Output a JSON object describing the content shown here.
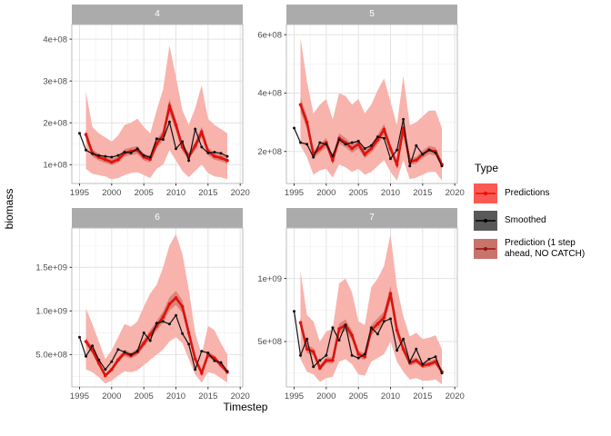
{
  "axes": {
    "x_label": "Timestep",
    "y_label": "biomass"
  },
  "legend": {
    "title": "Type",
    "items": [
      {
        "label": "Predictions",
        "swatch_bg": "#FB5A52",
        "line": "#F00C06"
      },
      {
        "label": "Smoothed",
        "swatch_bg": "#595959",
        "line": "#000000"
      },
      {
        "label": "Prediction (1 step ahead, NO CATCH)",
        "swatch_bg": "#C8736C",
        "line": "#99150D"
      }
    ]
  },
  "colors": {
    "pred_line": "#F00C06",
    "pred_ahead_line": "#A8241B",
    "smoothed_line": "#101010",
    "ribbon_outer": "#F8B3AD",
    "ribbon_inner": "#DD837B",
    "strip_fill": "#ABABAB",
    "strip_text": "#FFFFFF",
    "panel_border": "#BDBDBD",
    "grid_major": "#E3E3E3",
    "grid_minor": "#F1F1F1",
    "tick_label": "#4D4D4D"
  },
  "chart_data": {
    "type": "line",
    "title": "",
    "xlabel": "Timestep",
    "ylabel": "biomass",
    "value_scale": 100000000,
    "x_range": [
      1993.8,
      2020.4
    ],
    "x_ticks": [
      1995,
      2000,
      2005,
      2010,
      2015,
      2020
    ],
    "x_tick_labels": [
      "1995",
      "2000",
      "2005",
      "2010",
      "2015",
      "2020"
    ],
    "years": [
      1995,
      1996,
      1997,
      1998,
      1999,
      2000,
      2001,
      2002,
      2003,
      2004,
      2005,
      2006,
      2007,
      2008,
      2009,
      2010,
      2011,
      2012,
      2013,
      2014,
      2015,
      2016,
      2017,
      2018
    ],
    "pred_years_start": 1996,
    "facets": [
      {
        "label": "4",
        "ylim": [
          0.55,
          4.35
        ],
        "yticks": [
          1,
          2,
          3,
          4
        ],
        "ytick_labels": [
          "1e+08",
          "2e+08",
          "3e+08",
          "4e+08"
        ],
        "smoothed": [
          1.75,
          1.35,
          1.26,
          1.22,
          1.2,
          1.18,
          1.22,
          1.3,
          1.28,
          1.38,
          1.22,
          1.18,
          1.62,
          1.6,
          2.02,
          1.38,
          1.55,
          1.1,
          1.85,
          1.42,
          1.28,
          1.3,
          1.27,
          1.2
        ],
        "predictions": [
          1.72,
          1.28,
          1.18,
          1.12,
          1.06,
          1.12,
          1.28,
          1.32,
          1.35,
          1.18,
          1.13,
          1.5,
          1.7,
          2.4,
          1.95,
          1.42,
          1.2,
          1.45,
          1.78,
          1.32,
          1.2,
          1.16,
          1.1
        ],
        "ribbon_low": [
          0.9,
          0.78,
          0.75,
          0.72,
          0.65,
          0.68,
          0.75,
          0.8,
          0.82,
          0.75,
          0.68,
          0.9,
          1.0,
          1.35,
          1.1,
          0.85,
          0.7,
          0.85,
          1.0,
          0.8,
          0.72,
          0.7,
          0.65
        ],
        "ribbon_high": [
          2.75,
          1.9,
          1.75,
          1.65,
          1.55,
          1.7,
          1.95,
          2.0,
          2.1,
          1.9,
          1.75,
          2.3,
          2.8,
          3.85,
          3.1,
          2.3,
          1.95,
          2.35,
          2.9,
          2.1,
          1.95,
          1.85,
          1.75
        ]
      },
      {
        "label": "5",
        "ylim": [
          0.9,
          6.35
        ],
        "yticks": [
          2,
          4,
          6
        ],
        "ytick_labels": [
          "2e+08",
          "4e+08",
          "6e+08"
        ],
        "smoothed": [
          2.8,
          2.3,
          2.25,
          1.8,
          2.3,
          2.25,
          1.85,
          2.4,
          2.25,
          2.3,
          2.35,
          2.1,
          2.2,
          2.5,
          2.45,
          1.75,
          2.05,
          3.1,
          1.5,
          2.2,
          1.9,
          2.05,
          1.95,
          1.5
        ],
        "predictions": [
          3.6,
          3.0,
          1.9,
          2.1,
          2.3,
          1.7,
          2.45,
          2.3,
          2.1,
          2.25,
          1.9,
          2.1,
          2.4,
          2.75,
          2.1,
          1.55,
          2.8,
          1.65,
          1.7,
          1.9,
          2.05,
          2.0,
          1.55
        ],
        "ribbon_low": [
          2.2,
          1.8,
          1.2,
          1.35,
          1.4,
          1.1,
          1.55,
          1.45,
          1.3,
          1.4,
          1.2,
          1.3,
          1.5,
          1.7,
          1.3,
          1.0,
          1.7,
          1.05,
          1.1,
          1.2,
          1.3,
          1.3,
          1.0
        ],
        "ribbon_high": [
          5.9,
          4.4,
          3.3,
          3.6,
          3.8,
          3.1,
          4.0,
          3.9,
          3.6,
          3.8,
          3.3,
          3.6,
          4.1,
          4.5,
          3.7,
          2.9,
          4.6,
          2.9,
          3.0,
          3.2,
          3.4,
          3.4,
          2.8
        ]
      },
      {
        "label": "6",
        "ylim": [
          1.3,
          19.5
        ],
        "yticks": [
          5,
          10,
          15
        ],
        "ytick_labels": [
          "5.0e+08",
          "1.0e+09",
          "1.5e+09"
        ],
        "smoothed": [
          7.0,
          4.8,
          6.0,
          4.4,
          3.3,
          4.2,
          5.6,
          5.3,
          5.0,
          5.4,
          7.5,
          6.6,
          8.6,
          8.8,
          8.5,
          9.5,
          7.4,
          6.2,
          3.3,
          5.4,
          5.2,
          4.3,
          4.1,
          3.1
        ],
        "predictions": [
          6.5,
          5.5,
          4.0,
          2.6,
          3.3,
          4.4,
          5.2,
          4.9,
          5.3,
          6.3,
          7.3,
          8.3,
          9.3,
          10.8,
          11.5,
          10.5,
          7.5,
          4.5,
          2.9,
          5.0,
          4.6,
          3.8,
          3.0
        ],
        "ribbon_low": [
          3.3,
          3.0,
          2.4,
          1.7,
          2.0,
          2.6,
          3.1,
          3.0,
          3.2,
          3.8,
          4.4,
          5.0,
          5.6,
          6.5,
          7.0,
          6.3,
          4.5,
          2.7,
          1.8,
          3.0,
          2.8,
          2.3,
          1.8
        ],
        "ribbon_high": [
          10.3,
          8.5,
          6.5,
          4.5,
          5.5,
          7.0,
          8.5,
          8.2,
          8.8,
          10.5,
          12.0,
          13.0,
          15.0,
          17.5,
          18.8,
          16.5,
          12.5,
          7.5,
          5.0,
          8.3,
          7.8,
          6.3,
          5.0
        ]
      },
      {
        "label": "7",
        "ylim": [
          1.4,
          14.0
        ],
        "yticks": [
          5,
          10
        ],
        "ytick_labels": [
          "5e+08",
          "1e+09"
        ],
        "smoothed": [
          7.4,
          3.9,
          5.2,
          3.0,
          3.5,
          3.9,
          6.1,
          5.1,
          6.3,
          3.9,
          3.7,
          4.0,
          6.1,
          5.6,
          6.6,
          6.8,
          4.3,
          5.2,
          3.4,
          4.4,
          3.2,
          3.6,
          3.8,
          2.5
        ],
        "predictions": [
          6.5,
          4.4,
          4.2,
          2.9,
          3.5,
          3.5,
          6.0,
          6.3,
          5.5,
          4.0,
          3.8,
          5.9,
          6.4,
          6.9,
          8.8,
          5.9,
          4.4,
          3.3,
          3.5,
          3.1,
          3.2,
          3.4,
          2.6
        ],
        "ribbon_low": [
          3.6,
          2.6,
          2.4,
          1.8,
          2.1,
          2.2,
          3.4,
          3.6,
          3.2,
          2.4,
          2.3,
          3.4,
          3.7,
          4.0,
          5.0,
          3.4,
          2.6,
          2.0,
          2.1,
          1.9,
          1.9,
          2.0,
          1.6
        ],
        "ribbon_high": [
          10.6,
          7.1,
          6.6,
          5.0,
          5.8,
          6.0,
          9.6,
          10.0,
          8.9,
          6.6,
          6.3,
          9.3,
          10.0,
          11.0,
          13.5,
          9.3,
          7.0,
          5.4,
          5.7,
          5.2,
          5.3,
          5.5,
          4.4
        ]
      }
    ]
  }
}
